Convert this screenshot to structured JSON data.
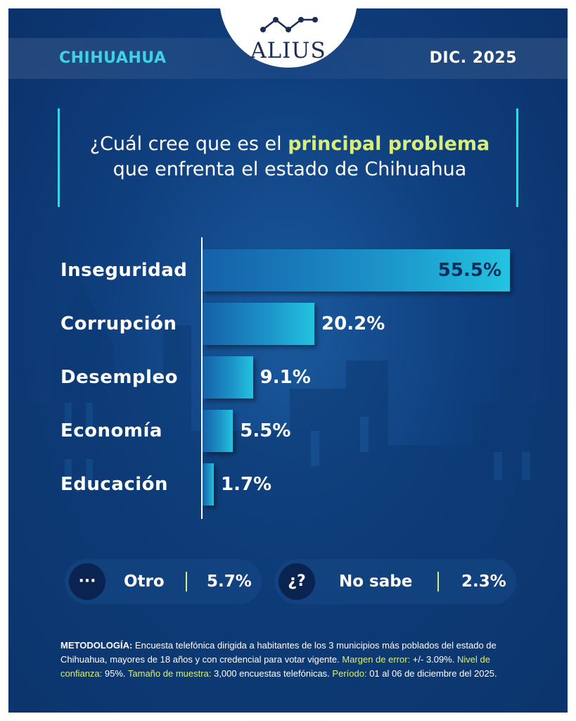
{
  "header": {
    "state": "CHIHUAHUA",
    "date": "DIC. 2025",
    "logo": "ALIUS"
  },
  "question": {
    "pre": "¿Cuál cree que es el ",
    "highlight": "principal problema",
    "post": "que enfrenta el estado de Chihuahua"
  },
  "chart_data": {
    "type": "bar",
    "orientation": "horizontal",
    "categories": [
      "Inseguridad",
      "Corrupción",
      "Desempleo",
      "Economía",
      "Educación"
    ],
    "values": [
      55.5,
      20.2,
      9.1,
      5.5,
      1.7
    ],
    "value_labels": [
      "55.5%",
      "20.2%",
      "9.1%",
      "5.5%",
      "1.7%"
    ],
    "title": "",
    "xlabel": "",
    "ylabel": "",
    "grid": false
  },
  "extra": {
    "other": {
      "icon": "···",
      "label": "Otro",
      "value": "5.7%"
    },
    "dont_know": {
      "icon": "¿?",
      "label": "No sabe",
      "value": "2.3%"
    }
  },
  "methodology": {
    "k1": "METODOLOGÍA:",
    "t1": " Encuesta telefónica dirigida a habitantes de los 3 municipios más poblados del estado de Chihuahua, mayores de 18 años y con credencial para votar vigente. ",
    "k2": "Margen de error:",
    "t2": " +/- 3.09%. ",
    "k3": "Nivel de confianza:",
    "t3": " 95%. ",
    "k4": "Tamaño de muestra:",
    "t4": " 3,000 encuestas telefónicas. ",
    "k5": "Período:",
    "t5": " 01 al 06 de diciembre del 2025."
  },
  "colors": {
    "accent_cyan": "#3fd2e6",
    "highlight": "#d9ee7a",
    "background": "#0f3f7e"
  }
}
